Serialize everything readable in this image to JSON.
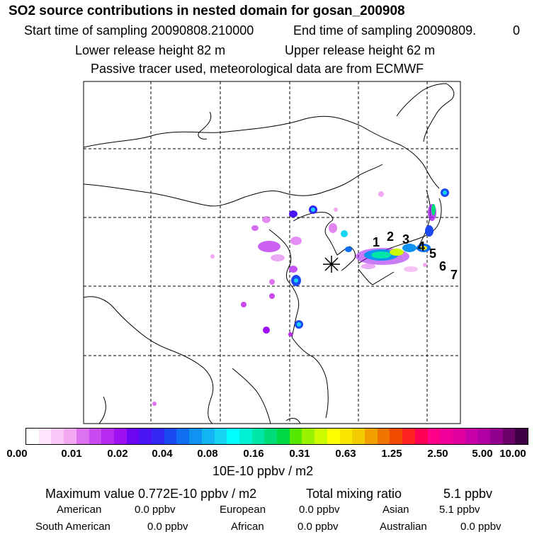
{
  "title": "SO2 source contributions in nested domain for gosan_200908",
  "header": {
    "start_label": "Start time of sampling 20090808.210000",
    "end_label": "End time of sampling 20090809.",
    "end_suffix": "0",
    "lower_release": "Lower release height   82 m",
    "upper_release": "Upper release height   62 m",
    "tracer_note": "Passive tracer used, meteorological data are from ECMWF"
  },
  "map": {
    "receptor_marker": "asterisk-icon",
    "site_labels": [
      "1",
      "2",
      "3",
      "4",
      "5",
      "6",
      "7"
    ]
  },
  "colorbar": {
    "ticks": [
      "0.00",
      "0.01",
      "0.02",
      "0.04",
      "0.08",
      "0.16",
      "0.31",
      "0.63",
      "1.25",
      "2.50",
      "5.00",
      "10.00"
    ],
    "unit_label": "10E-10 ppbv / m2",
    "colors": [
      "#ffffff",
      "#fde6fb",
      "#f8c8f6",
      "#f3a8f2",
      "#dd72f0",
      "#c94af0",
      "#b829f0",
      "#9e0ff2",
      "#6a06f2",
      "#4a14f4",
      "#3327f3",
      "#1a49f2",
      "#0e6ff3",
      "#0e93f3",
      "#12b5f2",
      "#16d5f2",
      "#00ffff",
      "#00f2d4",
      "#00e6a8",
      "#00dd77",
      "#00d944",
      "#55e800",
      "#99f200",
      "#ccfa00",
      "#ffff00",
      "#f8e600",
      "#f2cc00",
      "#f2a000",
      "#f27400",
      "#f24a00",
      "#ff2222",
      "#ff0055",
      "#ff0088",
      "#f00099",
      "#e000a0",
      "#c800a8",
      "#b000a4",
      "#90008c",
      "#6a0068",
      "#400044"
    ]
  },
  "summary": {
    "max_value": "Maximum value  0.772E-10 ppbv / m2",
    "total_label": "Total mixing ratio",
    "total_value": "5.1 ppbv",
    "regions": [
      {
        "name": "American",
        "value": "0.0 ppbv"
      },
      {
        "name": "European",
        "value": "0.0 ppbv"
      },
      {
        "name": "Asian",
        "value": "5.1 ppbv"
      },
      {
        "name": "South American",
        "value": "0.0 ppbv"
      },
      {
        "name": "African",
        "value": "0.0 ppbv"
      },
      {
        "name": "Australian",
        "value": "0.0 ppbv"
      }
    ]
  }
}
